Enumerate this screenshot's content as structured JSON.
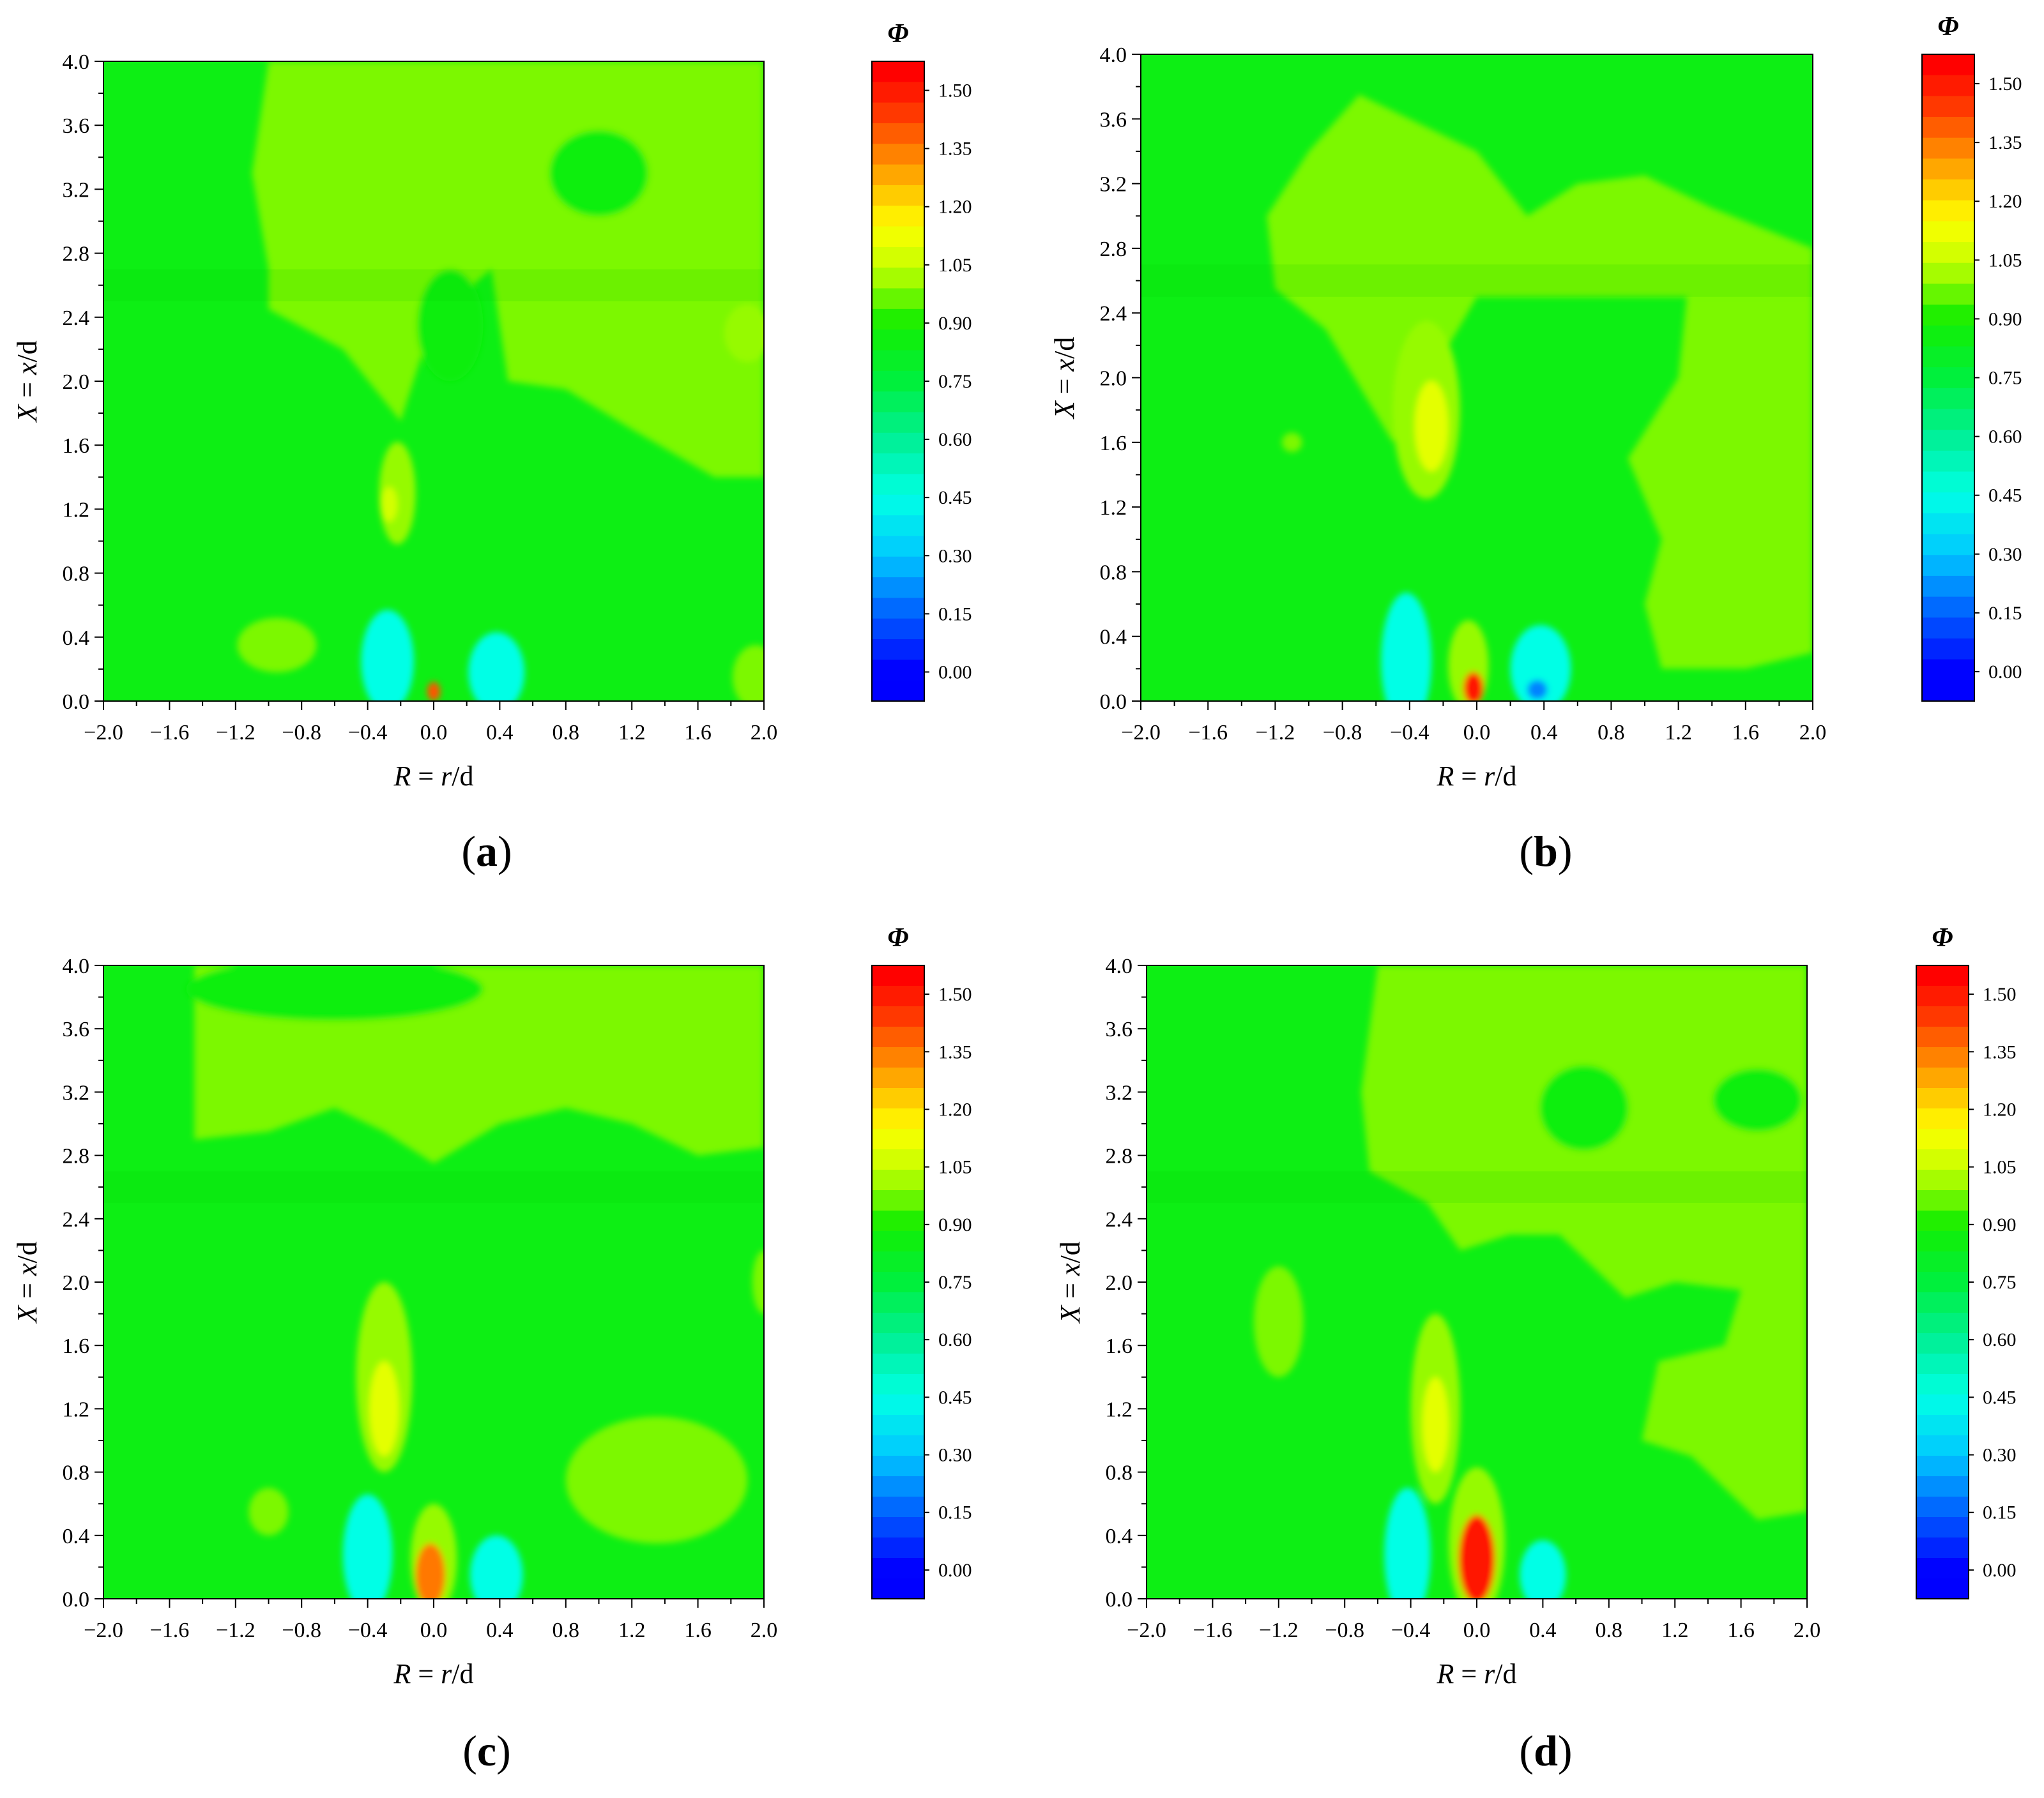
{
  "chart_data": [
    {
      "panel": "a",
      "type": "contour",
      "panel_label": "(a)",
      "xlabel": {
        "var": "R",
        "eq": " = ",
        "num": "r",
        "den": "/d"
      },
      "ylabel": {
        "var": "X",
        "eq": " = ",
        "num": "x",
        "den": "/d"
      },
      "xlim": [
        -2.0,
        2.0
      ],
      "ylim": [
        0.0,
        4.0
      ],
      "x_ticks": [
        "−2.0",
        "−1.6",
        "−1.2",
        "−0.8",
        "−0.4",
        "0.0",
        "0.4",
        "0.8",
        "1.2",
        "1.6",
        "2.0"
      ],
      "y_ticks": [
        "0.0",
        "0.4",
        "0.8",
        "1.2",
        "1.6",
        "2.0",
        "2.4",
        "2.8",
        "3.2",
        "3.6",
        "4.0"
      ],
      "colorbar": {
        "title": "Φ",
        "ticks": [
          "1.50",
          "1.35",
          "1.20",
          "1.05",
          "0.90",
          "0.75",
          "0.60",
          "0.45",
          "0.30",
          "0.15",
          "0.00"
        ]
      },
      "base_value": 0.85,
      "features": [
        {
          "type": "region",
          "value": 0.98,
          "path": [
            [
              -1.0,
              4.0
            ],
            [
              -1.1,
              3.3
            ],
            [
              -1.0,
              2.7
            ],
            [
              -1.0,
              2.45
            ],
            [
              -0.55,
              2.2
            ],
            [
              -0.2,
              1.75
            ],
            [
              0.0,
              2.4
            ],
            [
              0.35,
              2.7
            ],
            [
              0.45,
              2.0
            ],
            [
              0.8,
              1.95
            ],
            [
              1.2,
              1.7
            ],
            [
              1.7,
              1.4
            ],
            [
              2.0,
              1.4
            ],
            [
              2.0,
              4.0
            ]
          ]
        },
        {
          "type": "blob",
          "value": 0.86,
          "x": 1.0,
          "y": 3.3,
          "rx": 0.3,
          "ry": 0.27
        },
        {
          "type": "blob",
          "value": 0.88,
          "x": 0.1,
          "y": 2.35,
          "rx": 0.2,
          "ry": 0.35
        },
        {
          "type": "blob",
          "value": 1.0,
          "x": -0.22,
          "y": 1.3,
          "rx": 0.11,
          "ry": 0.32
        },
        {
          "type": "blob",
          "value": 1.07,
          "x": -0.27,
          "y": 1.23,
          "rx": 0.05,
          "ry": 0.11
        },
        {
          "type": "blob",
          "value": 1.0,
          "x": 1.9,
          "y": 2.3,
          "rx": 0.14,
          "ry": 0.18
        },
        {
          "type": "blob",
          "value": 0.98,
          "x": -0.95,
          "y": 0.35,
          "rx": 0.24,
          "ry": 0.17
        },
        {
          "type": "blob",
          "value": 0.98,
          "x": 1.95,
          "y": 0.15,
          "rx": 0.14,
          "ry": 0.2
        },
        {
          "type": "blob",
          "value": 0.45,
          "x": -0.28,
          "y": 0.25,
          "rx": 0.16,
          "ry": 0.32
        },
        {
          "type": "blob",
          "value": 0.45,
          "x": 0.38,
          "y": 0.18,
          "rx": 0.17,
          "ry": 0.25
        },
        {
          "type": "blob",
          "value": 1.4,
          "x": 0.0,
          "y": 0.06,
          "rx": 0.04,
          "ry": 0.06
        }
      ]
    },
    {
      "panel": "b",
      "type": "contour",
      "panel_label": "(b)",
      "xlabel": {
        "var": "R",
        "eq": " = ",
        "num": "r",
        "den": "/d"
      },
      "ylabel": {
        "var": "X",
        "eq": " = ",
        "num": "x",
        "den": "/d"
      },
      "xlim": [
        -2.0,
        2.0
      ],
      "ylim": [
        0.0,
        4.0
      ],
      "x_ticks": [
        "−2.0",
        "−1.6",
        "−1.2",
        "−0.8",
        "−0.4",
        "0.0",
        "0.4",
        "0.8",
        "1.2",
        "1.6",
        "2.0"
      ],
      "y_ticks": [
        "0.0",
        "0.4",
        "0.8",
        "1.2",
        "1.6",
        "2.0",
        "2.4",
        "2.8",
        "3.2",
        "3.6",
        "4.0"
      ],
      "colorbar": {
        "title": "Φ",
        "ticks": [
          "1.50",
          "1.35",
          "1.20",
          "1.05",
          "0.90",
          "0.75",
          "0.60",
          "0.45",
          "0.30",
          "0.15",
          "0.00"
        ]
      },
      "base_value": 0.85,
      "features": [
        {
          "type": "region",
          "value": 0.98,
          "path": [
            [
              -1.25,
              3.0
            ],
            [
              -1.0,
              3.4
            ],
            [
              -0.7,
              3.75
            ],
            [
              0.0,
              3.4
            ],
            [
              0.3,
              3.0
            ],
            [
              0.6,
              3.2
            ],
            [
              1.0,
              3.25
            ],
            [
              1.4,
              3.05
            ],
            [
              2.0,
              2.8
            ],
            [
              2.0,
              2.5
            ],
            [
              0.0,
              2.5
            ],
            [
              -0.5,
              1.6
            ],
            [
              -0.9,
              2.3
            ],
            [
              -1.2,
              2.55
            ]
          ]
        },
        {
          "type": "blob",
          "value": 1.0,
          "x": -0.3,
          "y": 1.8,
          "rx": 0.2,
          "ry": 0.55
        },
        {
          "type": "blob",
          "value": 1.1,
          "x": -0.27,
          "y": 1.7,
          "rx": 0.1,
          "ry": 0.28
        },
        {
          "type": "region",
          "value": 0.98,
          "path": [
            [
              1.25,
              2.5
            ],
            [
              2.0,
              2.5
            ],
            [
              2.0,
              0.3
            ],
            [
              1.6,
              0.2
            ],
            [
              1.1,
              0.2
            ],
            [
              1.0,
              0.6
            ],
            [
              1.1,
              1.0
            ],
            [
              0.9,
              1.5
            ],
            [
              1.2,
              2.0
            ]
          ]
        },
        {
          "type": "blob",
          "value": 0.98,
          "x": -1.1,
          "y": 1.6,
          "rx": 0.06,
          "ry": 0.06
        },
        {
          "type": "blob",
          "value": 0.45,
          "x": -0.42,
          "y": 0.25,
          "rx": 0.15,
          "ry": 0.42
        },
        {
          "type": "blob",
          "value": 0.45,
          "x": 0.38,
          "y": 0.2,
          "rx": 0.18,
          "ry": 0.27
        },
        {
          "type": "blob",
          "value": 0.2,
          "x": 0.36,
          "y": 0.07,
          "rx": 0.06,
          "ry": 0.06
        },
        {
          "type": "blob",
          "value": 1.0,
          "x": -0.05,
          "y": 0.22,
          "rx": 0.12,
          "ry": 0.28
        },
        {
          "type": "blob",
          "value": 1.5,
          "x": -0.02,
          "y": 0.08,
          "rx": 0.06,
          "ry": 0.1
        }
      ]
    },
    {
      "panel": "c",
      "type": "contour",
      "panel_label": "(c)",
      "xlabel": {
        "var": "R",
        "eq": " = ",
        "num": "r",
        "den": "/d"
      },
      "ylabel": {
        "var": "X",
        "eq": " = ",
        "num": "x",
        "den": "/d"
      },
      "xlim": [
        -2.0,
        2.0
      ],
      "ylim": [
        0.0,
        4.0
      ],
      "x_ticks": [
        "−2.0",
        "−1.6",
        "−1.2",
        "−0.8",
        "−0.4",
        "0.0",
        "0.4",
        "0.8",
        "1.2",
        "1.6",
        "2.0"
      ],
      "y_ticks": [
        "0.0",
        "0.4",
        "0.8",
        "1.2",
        "1.6",
        "2.0",
        "2.4",
        "2.8",
        "3.2",
        "3.6",
        "4.0"
      ],
      "colorbar": {
        "title": "Φ",
        "ticks": [
          "1.50",
          "1.35",
          "1.20",
          "1.05",
          "0.90",
          "0.75",
          "0.60",
          "0.45",
          "0.30",
          "0.15",
          "0.00"
        ]
      },
      "base_value": 0.85,
      "features": [
        {
          "type": "region",
          "value": 0.98,
          "path": [
            [
              -1.45,
              4.0
            ],
            [
              -1.45,
              3.5
            ],
            [
              -1.45,
              2.9
            ],
            [
              -1.0,
              2.95
            ],
            [
              -0.6,
              3.1
            ],
            [
              -0.3,
              2.95
            ],
            [
              0.0,
              2.75
            ],
            [
              0.4,
              3.0
            ],
            [
              0.8,
              3.1
            ],
            [
              1.2,
              3.0
            ],
            [
              1.6,
              2.8
            ],
            [
              2.0,
              2.85
            ],
            [
              2.0,
              4.0
            ]
          ]
        },
        {
          "type": "blob",
          "value": 0.86,
          "x": -0.6,
          "y": 3.85,
          "rx": 0.9,
          "ry": 0.2
        },
        {
          "type": "blob",
          "value": 1.0,
          "x": -0.3,
          "y": 1.4,
          "rx": 0.17,
          "ry": 0.6
        },
        {
          "type": "blob",
          "value": 1.1,
          "x": -0.3,
          "y": 1.2,
          "rx": 0.09,
          "ry": 0.3
        },
        {
          "type": "blob",
          "value": 0.98,
          "x": 1.35,
          "y": 0.75,
          "rx": 0.55,
          "ry": 0.4
        },
        {
          "type": "blob",
          "value": 0.98,
          "x": -1.0,
          "y": 0.55,
          "rx": 0.12,
          "ry": 0.15
        },
        {
          "type": "blob",
          "value": 0.98,
          "x": 2.0,
          "y": 2.0,
          "rx": 0.07,
          "ry": 0.2
        },
        {
          "type": "blob",
          "value": 0.45,
          "x": -0.4,
          "y": 0.28,
          "rx": 0.15,
          "ry": 0.38
        },
        {
          "type": "blob",
          "value": 0.45,
          "x": 0.38,
          "y": 0.15,
          "rx": 0.16,
          "ry": 0.25
        },
        {
          "type": "blob",
          "value": 1.0,
          "x": 0.0,
          "y": 0.25,
          "rx": 0.14,
          "ry": 0.35
        },
        {
          "type": "blob",
          "value": 1.35,
          "x": -0.02,
          "y": 0.15,
          "rx": 0.09,
          "ry": 0.2
        }
      ]
    },
    {
      "panel": "d",
      "type": "contour",
      "panel_label": "(d)",
      "xlabel": {
        "var": "R",
        "eq": " = ",
        "num": "r",
        "den": "/d"
      },
      "ylabel": {
        "var": "X",
        "eq": " = ",
        "num": "x",
        "den": "/d"
      },
      "xlim": [
        -2.0,
        2.0
      ],
      "ylim": [
        0.0,
        4.0
      ],
      "x_ticks": [
        "−2.0",
        "−1.6",
        "−1.2",
        "−0.8",
        "−0.4",
        "0.0",
        "0.4",
        "0.8",
        "1.2",
        "1.6",
        "2.0"
      ],
      "y_ticks": [
        "0.0",
        "0.4",
        "0.8",
        "1.2",
        "1.6",
        "2.0",
        "2.4",
        "2.8",
        "3.2",
        "3.6",
        "4.0"
      ],
      "colorbar": {
        "title": "Φ",
        "ticks": [
          "1.50",
          "1.35",
          "1.20",
          "1.05",
          "0.90",
          "0.75",
          "0.60",
          "0.45",
          "0.30",
          "0.15",
          "0.00"
        ]
      },
      "base_value": 0.85,
      "features": [
        {
          "type": "region",
          "value": 0.98,
          "path": [
            [
              -0.6,
              4.0
            ],
            [
              -0.7,
              3.2
            ],
            [
              -0.65,
              2.7
            ],
            [
              -0.3,
              2.5
            ],
            [
              -0.1,
              2.2
            ],
            [
              0.2,
              2.3
            ],
            [
              0.5,
              2.3
            ],
            [
              0.9,
              1.9
            ],
            [
              1.2,
              2.0
            ],
            [
              1.6,
              1.95
            ],
            [
              1.5,
              1.6
            ],
            [
              1.1,
              1.5
            ],
            [
              1.0,
              1.0
            ],
            [
              1.3,
              0.9
            ],
            [
              1.7,
              0.5
            ],
            [
              2.0,
              0.55
            ],
            [
              2.0,
              4.0
            ]
          ]
        },
        {
          "type": "blob",
          "value": 0.86,
          "x": 0.65,
          "y": 3.1,
          "rx": 0.27,
          "ry": 0.27
        },
        {
          "type": "blob",
          "value": 0.86,
          "x": 1.7,
          "y": 3.15,
          "rx": 0.27,
          "ry": 0.2
        },
        {
          "type": "blob",
          "value": 0.98,
          "x": -1.2,
          "y": 1.75,
          "rx": 0.15,
          "ry": 0.35
        },
        {
          "type": "blob",
          "value": 1.0,
          "x": -0.25,
          "y": 1.2,
          "rx": 0.15,
          "ry": 0.6
        },
        {
          "type": "blob",
          "value": 1.1,
          "x": -0.25,
          "y": 1.1,
          "rx": 0.08,
          "ry": 0.3
        },
        {
          "type": "blob",
          "value": 0.45,
          "x": -0.42,
          "y": 0.28,
          "rx": 0.14,
          "ry": 0.42
        },
        {
          "type": "blob",
          "value": 0.45,
          "x": 0.4,
          "y": 0.15,
          "rx": 0.14,
          "ry": 0.22
        },
        {
          "type": "blob",
          "value": 1.0,
          "x": 0.0,
          "y": 0.35,
          "rx": 0.17,
          "ry": 0.48
        },
        {
          "type": "blob",
          "value": 1.5,
          "x": 0.0,
          "y": 0.25,
          "rx": 0.11,
          "ry": 0.28
        }
      ]
    }
  ]
}
